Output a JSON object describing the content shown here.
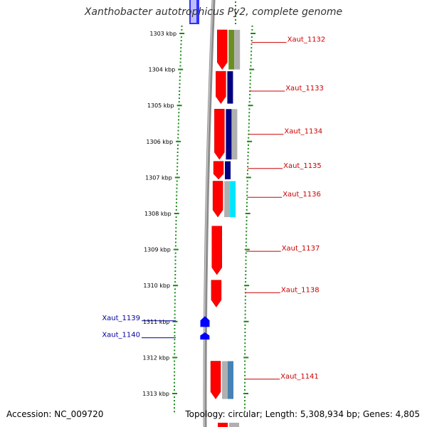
{
  "title": "Xanthobacter autotrophicus Py2, complete genome",
  "accession_text": "Accession: NC_009720",
  "summary_text": "Topology: circular; Length: 5,308,934 bp; Genes: 4,805",
  "colors": {
    "tick": "#1a8a1a",
    "backbone": "#8c8c8c",
    "gene_forward": "#ff0000",
    "gene_reverse": "#0000ff",
    "label_forward": "#cc0000",
    "label_reverse": "#000099",
    "navy": "#000080",
    "olive": "#6b8e23",
    "steel": "#4682b4",
    "gray": "#b0b0b0",
    "cyan": "#00e5ff"
  },
  "chart_data": {
    "type": "genome-map",
    "kbp_range": [
      1302.8,
      1313.5
    ],
    "scale_ticks": [
      {
        "kbp": 1303,
        "label": "1303 kbp"
      },
      {
        "kbp": 1304,
        "label": "1304 kbp"
      },
      {
        "kbp": 1305,
        "label": "1305 kbp"
      },
      {
        "kbp": 1306,
        "label": "1306 kbp"
      },
      {
        "kbp": 1307,
        "label": "1307 kbp"
      },
      {
        "kbp": 1308,
        "label": "1308 kbp"
      },
      {
        "kbp": 1309,
        "label": "1309 kbp"
      },
      {
        "kbp": 1310,
        "label": "1310 kbp"
      },
      {
        "kbp": 1311,
        "label": "1311 kbp"
      },
      {
        "kbp": 1312,
        "label": "1312 kbp"
      },
      {
        "kbp": 1313,
        "label": "1313 kbp"
      }
    ],
    "genes": [
      {
        "name": "Xaut_1132",
        "strand": "+",
        "start_kbp": 1302.9,
        "end_kbp": 1304.0,
        "cog_colors": [
          "olive",
          "gray"
        ]
      },
      {
        "name": "Xaut_1133",
        "strand": "+",
        "start_kbp": 1304.05,
        "end_kbp": 1304.95,
        "cog_colors": [
          "navy"
        ]
      },
      {
        "name": "Xaut_1134",
        "strand": "+",
        "start_kbp": 1305.1,
        "end_kbp": 1306.5,
        "cog_colors": [
          "navy",
          "gray"
        ]
      },
      {
        "name": "Xaut_1135",
        "strand": "+",
        "start_kbp": 1306.55,
        "end_kbp": 1307.05,
        "cog_colors": [
          "navy"
        ]
      },
      {
        "name": "Xaut_1136",
        "strand": "+",
        "start_kbp": 1307.1,
        "end_kbp": 1308.1,
        "cog_colors": [
          "gray",
          "cyan"
        ]
      },
      {
        "name": "Xaut_1137",
        "strand": "+",
        "start_kbp": 1308.35,
        "end_kbp": 1309.7,
        "cog_colors": []
      },
      {
        "name": "Xaut_1138",
        "strand": "+",
        "start_kbp": 1309.85,
        "end_kbp": 1310.6,
        "cog_colors": []
      },
      {
        "name": "Xaut_1139",
        "strand": "-",
        "start_kbp": 1310.85,
        "end_kbp": 1311.15,
        "cog_colors": []
      },
      {
        "name": "Xaut_1140",
        "strand": "-",
        "start_kbp": 1311.3,
        "end_kbp": 1311.5,
        "cog_colors": []
      },
      {
        "name": "Xaut_1141",
        "strand": "+",
        "start_kbp": 1312.1,
        "end_kbp": 1313.15,
        "cog_colors": [
          "gray",
          "steel"
        ]
      }
    ],
    "label_kbp": {
      "Xaut_1132": 1303.25,
      "Xaut_1133": 1304.6,
      "Xaut_1134": 1305.8,
      "Xaut_1135": 1306.75,
      "Xaut_1136": 1307.55,
      "Xaut_1137": 1309.05,
      "Xaut_1138": 1310.2,
      "Xaut_1139": 1310.98,
      "Xaut_1140": 1311.45,
      "Xaut_1141": 1312.6
    }
  }
}
